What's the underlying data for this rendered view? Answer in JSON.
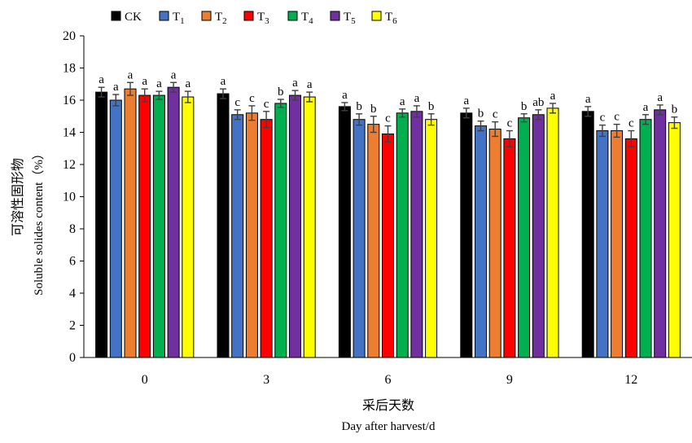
{
  "chart_data": {
    "type": "bar",
    "categories": [
      "0",
      "3",
      "6",
      "9",
      "12"
    ],
    "xlabel_cn": "采后天数",
    "xlabel_en": "Day after harvest/d",
    "ylabel_cn": "可溶性固形物",
    "ylabel_en": "Soluble solides content（%）",
    "ylim": [
      0,
      20
    ],
    "yticks": [
      "0",
      "2",
      "4",
      "6",
      "8",
      "10",
      "12",
      "14",
      "16",
      "18",
      "20"
    ],
    "grid": false,
    "legend_position": "top-left",
    "series": [
      {
        "name": "CK",
        "base": "CK",
        "sub": "",
        "color": "#000000",
        "values": [
          16.5,
          16.4,
          15.6,
          15.2,
          15.3
        ],
        "errors": [
          0.3,
          0.3,
          0.25,
          0.3,
          0.3
        ],
        "letters": [
          "a",
          "a",
          "a",
          "a",
          "a"
        ]
      },
      {
        "name": "T1",
        "base": "T",
        "sub": "1",
        "color": "#4472C4",
        "values": [
          16.0,
          15.1,
          14.8,
          14.4,
          14.1
        ],
        "errors": [
          0.35,
          0.3,
          0.35,
          0.3,
          0.35
        ],
        "letters": [
          "a",
          "c",
          "b",
          "b",
          "c"
        ]
      },
      {
        "name": "T2",
        "base": "T",
        "sub": "2",
        "color": "#ED7D31",
        "values": [
          16.7,
          15.2,
          14.5,
          14.2,
          14.1
        ],
        "errors": [
          0.4,
          0.45,
          0.5,
          0.45,
          0.4
        ],
        "letters": [
          "a",
          "c",
          "b",
          "c",
          "c"
        ]
      },
      {
        "name": "T3",
        "base": "T",
        "sub": "3",
        "color": "#FF0000",
        "values": [
          16.3,
          14.8,
          13.9,
          13.6,
          13.6
        ],
        "errors": [
          0.4,
          0.5,
          0.5,
          0.5,
          0.5
        ],
        "letters": [
          "a",
          "c",
          "c",
          "c",
          "c"
        ]
      },
      {
        "name": "T4",
        "base": "T",
        "sub": "4",
        "color": "#00B050",
        "values": [
          16.3,
          15.8,
          15.2,
          14.9,
          14.8
        ],
        "errors": [
          0.25,
          0.25,
          0.25,
          0.25,
          0.3
        ],
        "letters": [
          "a",
          "b",
          "a",
          "b",
          "a"
        ]
      },
      {
        "name": "T5",
        "base": "T",
        "sub": "5",
        "color": "#7030A0",
        "values": [
          16.8,
          16.3,
          15.3,
          15.1,
          15.4
        ],
        "errors": [
          0.3,
          0.3,
          0.35,
          0.3,
          0.3
        ],
        "letters": [
          "a",
          "a",
          "a",
          "ab",
          "a"
        ]
      },
      {
        "name": "T6",
        "base": "T",
        "sub": "6",
        "color": "#FFFF00",
        "values": [
          16.2,
          16.2,
          14.8,
          15.5,
          14.6
        ],
        "errors": [
          0.35,
          0.3,
          0.35,
          0.3,
          0.35
        ],
        "letters": [
          "a",
          "a",
          "b",
          "a",
          "b"
        ]
      }
    ]
  }
}
